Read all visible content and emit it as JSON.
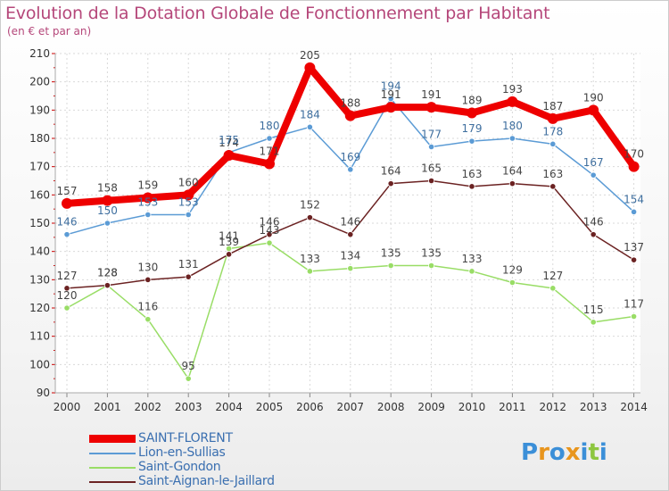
{
  "chart_data": {
    "type": "line",
    "title": "Evolution de la Dotation Globale de Fonctionnement par Habitant",
    "subtitle": "(en € et par an)",
    "x": [
      "2000",
      "2001",
      "2002",
      "2003",
      "2004",
      "2005",
      "2006",
      "2007",
      "2008",
      "2009",
      "2010",
      "2011",
      "2012",
      "2013",
      "2014"
    ],
    "yticks": [
      90,
      100,
      110,
      120,
      130,
      140,
      150,
      160,
      170,
      180,
      190,
      200,
      210
    ],
    "ylim": [
      90,
      210
    ],
    "series": [
      {
        "name": "SAINT-FLORENT",
        "color": "#ee0000",
        "values": [
          157,
          158,
          159,
          160,
          174,
          171,
          205,
          188,
          191,
          191,
          189,
          193,
          187,
          190,
          170
        ]
      },
      {
        "name": "Lion-en-Sullias",
        "color": "#5b9bd5",
        "values": [
          146,
          150,
          153,
          153,
          175,
          180,
          184,
          169,
          194,
          177,
          179,
          180,
          178,
          167,
          154
        ]
      },
      {
        "name": "Saint-Gondon",
        "color": "#99dd66",
        "values": [
          120,
          128,
          116,
          95,
          141,
          143,
          133,
          134,
          135,
          135,
          133,
          129,
          127,
          115,
          117
        ]
      },
      {
        "name": "Saint-Aignan-le-Jaillard",
        "color": "#6b2222",
        "values": [
          127,
          128,
          130,
          131,
          139,
          146,
          152,
          146,
          164,
          165,
          163,
          164,
          163,
          146,
          137
        ]
      }
    ]
  },
  "logo": {
    "text": "Proxiti",
    "letters": [
      "P",
      "r",
      "o",
      "x",
      "i",
      "t",
      "i"
    ],
    "colors": [
      "#3b8fd8",
      "#e8951d",
      "#3b8fd8",
      "#e8951d",
      "#3b8fd8",
      "#8dc63f",
      "#3b8fd8"
    ]
  }
}
